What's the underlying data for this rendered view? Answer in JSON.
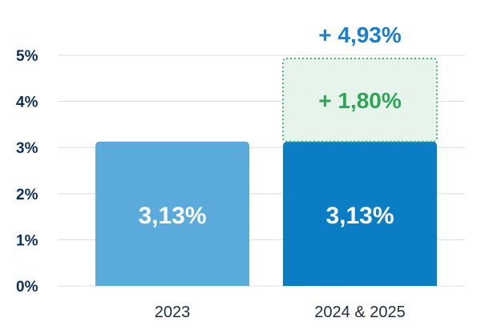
{
  "chart_data": {
    "type": "bar",
    "stacked": true,
    "categories": [
      "2023",
      "2024 & 2025"
    ],
    "series": [
      {
        "values": [
          3.13,
          3.13
        ],
        "labels": [
          "3,13%",
          "3,13%"
        ]
      },
      {
        "values": [
          0,
          1.8
        ],
        "labels": [
          "",
          "+ 1,80%"
        ]
      }
    ],
    "totals": [
      "",
      "+ 4,93%"
    ],
    "ylim": [
      0,
      5
    ],
    "yticks": [
      "0%",
      "1%",
      "2%",
      "3%",
      "4%",
      "5%"
    ],
    "grid": true,
    "colors": {
      "bar_2023": "#5aabdb",
      "bar_base": "#0a7dc4",
      "increase_fill": "#e7f4ec",
      "increase_border": "#4caf6f",
      "increase_text": "#2fa55a",
      "total_text": "#1a7fc9",
      "axis_text": "#0d2f5a",
      "grid": "#d8dce2"
    }
  }
}
